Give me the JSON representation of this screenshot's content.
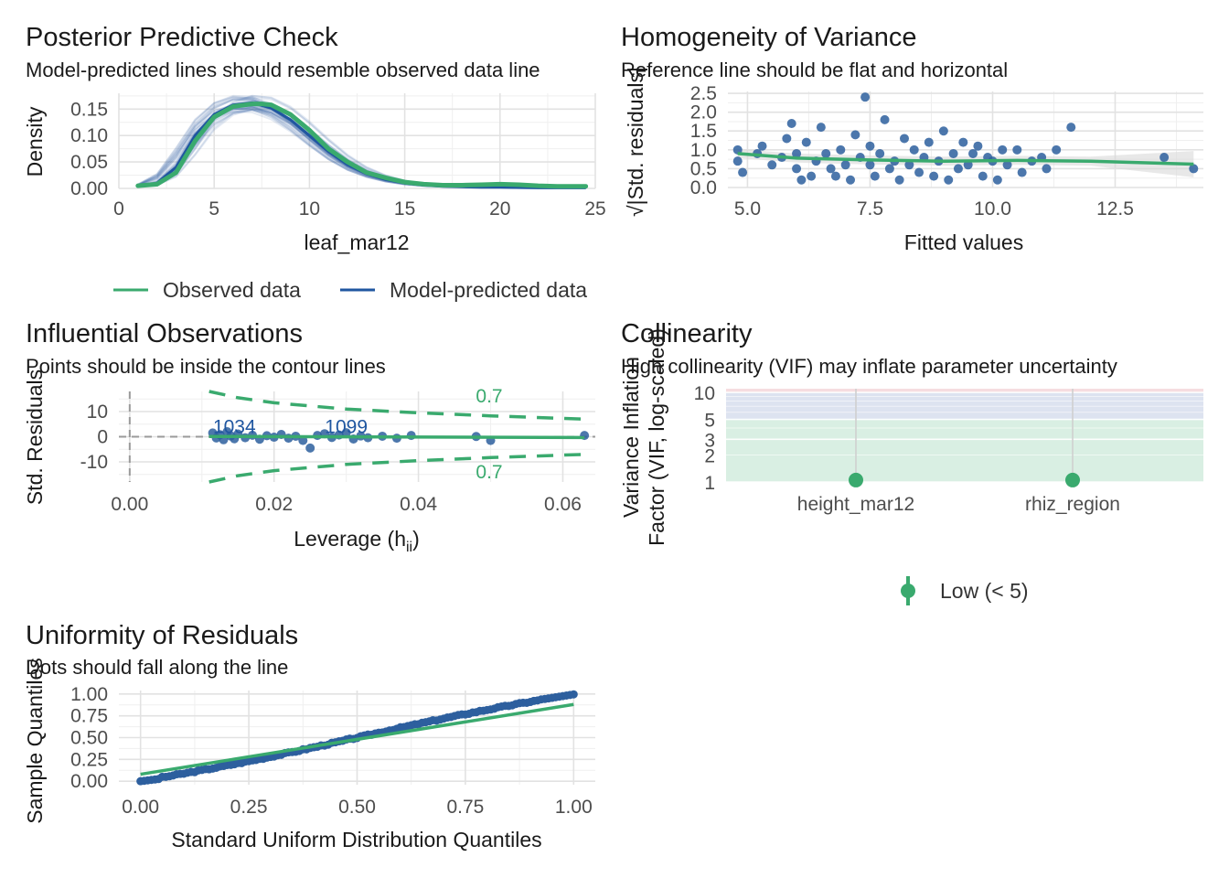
{
  "colors": {
    "observed": "#3aaa6e",
    "predicted": "#1f56a0",
    "point": "#2d5f9e",
    "low": "#3aaa6e",
    "band_low": "#d9efe3",
    "band_mod": "#dde3f0",
    "band_high": "#f6dde0"
  },
  "chart_data": [
    {
      "id": "ppc",
      "type": "line",
      "title": "Posterior Predictive Check",
      "subtitle": "Model-predicted lines should resemble observed data line",
      "xlabel": "leaf_mar12",
      "ylabel": "Density",
      "xlim": [
        0,
        25
      ],
      "ylim": [
        0,
        0.18
      ],
      "xticks": [
        0,
        5,
        10,
        15,
        20,
        25
      ],
      "yticks": [
        "0.00",
        "0.05",
        "0.10",
        "0.15"
      ],
      "legend": [
        "Observed data",
        "Model-predicted data"
      ],
      "legend_position": "bottom",
      "series": [
        {
          "name": "Observed data",
          "x": [
            1,
            2,
            3,
            4,
            5,
            6,
            7,
            7.5,
            8,
            9,
            10,
            11,
            12,
            13,
            14,
            15,
            16,
            17,
            18,
            19,
            20,
            21,
            22,
            23,
            24.5
          ],
          "y": [
            0.005,
            0.008,
            0.03,
            0.09,
            0.135,
            0.155,
            0.16,
            0.16,
            0.158,
            0.14,
            0.11,
            0.075,
            0.05,
            0.03,
            0.02,
            0.012,
            0.008,
            0.006,
            0.006,
            0.007,
            0.008,
            0.007,
            0.005,
            0.004,
            0.004
          ]
        },
        {
          "name": "Model-predicted data",
          "x": [
            1,
            2,
            3,
            4,
            5,
            6,
            7,
            8,
            9,
            10,
            11,
            12,
            13,
            14,
            15,
            16,
            17,
            18,
            19,
            20,
            22,
            24.5
          ],
          "y": [
            0.004,
            0.01,
            0.04,
            0.1,
            0.14,
            0.158,
            0.162,
            0.152,
            0.13,
            0.1,
            0.07,
            0.045,
            0.028,
            0.017,
            0.01,
            0.006,
            0.004,
            0.003,
            0.002,
            0.002,
            0.001,
            0.001
          ]
        }
      ]
    },
    {
      "id": "hov",
      "type": "scatter",
      "title": "Homogeneity of Variance",
      "subtitle": "Reference line should be flat and horizontal",
      "xlabel": "Fitted values",
      "ylabel": "√|Std. residuals|",
      "xlim": [
        4.6,
        14.3
      ],
      "ylim": [
        0,
        2.55
      ],
      "xticks": [
        "5.0",
        "7.5",
        "10.0",
        "12.5"
      ],
      "yticks": [
        "0.0",
        "0.5",
        "1.0",
        "1.5",
        "2.0",
        "2.5"
      ],
      "points": [
        [
          4.8,
          1.0
        ],
        [
          4.8,
          0.7
        ],
        [
          4.9,
          0.4
        ],
        [
          5.2,
          0.9
        ],
        [
          5.3,
          1.1
        ],
        [
          5.5,
          0.6
        ],
        [
          5.7,
          0.8
        ],
        [
          5.8,
          1.3
        ],
        [
          5.9,
          1.7
        ],
        [
          6.0,
          0.9
        ],
        [
          6.0,
          0.5
        ],
        [
          6.1,
          0.2
        ],
        [
          6.2,
          1.2
        ],
        [
          6.3,
          0.3
        ],
        [
          6.4,
          0.7
        ],
        [
          6.5,
          1.6
        ],
        [
          6.6,
          0.9
        ],
        [
          6.7,
          0.5
        ],
        [
          6.8,
          0.3
        ],
        [
          6.9,
          1.0
        ],
        [
          7.0,
          0.6
        ],
        [
          7.1,
          0.2
        ],
        [
          7.2,
          1.4
        ],
        [
          7.3,
          0.8
        ],
        [
          7.4,
          2.4
        ],
        [
          7.5,
          0.6
        ],
        [
          7.5,
          1.1
        ],
        [
          7.6,
          0.3
        ],
        [
          7.7,
          0.9
        ],
        [
          7.8,
          1.8
        ],
        [
          7.9,
          0.5
        ],
        [
          8.0,
          0.7
        ],
        [
          8.1,
          0.2
        ],
        [
          8.2,
          1.3
        ],
        [
          8.3,
          0.6
        ],
        [
          8.4,
          1.0
        ],
        [
          8.5,
          0.4
        ],
        [
          8.6,
          0.8
        ],
        [
          8.7,
          1.2
        ],
        [
          8.8,
          0.3
        ],
        [
          8.9,
          0.7
        ],
        [
          9.0,
          1.5
        ],
        [
          9.1,
          0.2
        ],
        [
          9.2,
          0.9
        ],
        [
          9.3,
          0.5
        ],
        [
          9.4,
          1.2
        ],
        [
          9.5,
          0.6
        ],
        [
          9.6,
          0.9
        ],
        [
          9.7,
          1.1
        ],
        [
          9.8,
          0.3
        ],
        [
          9.9,
          0.8
        ],
        [
          10.0,
          0.7
        ],
        [
          10.1,
          0.2
        ],
        [
          10.2,
          1.0
        ],
        [
          10.3,
          0.6
        ],
        [
          10.5,
          1.0
        ],
        [
          10.6,
          0.4
        ],
        [
          10.8,
          0.7
        ],
        [
          11.0,
          0.8
        ],
        [
          11.1,
          0.5
        ],
        [
          11.3,
          1.0
        ],
        [
          11.6,
          1.6
        ],
        [
          13.5,
          0.8
        ],
        [
          14.1,
          0.5
        ]
      ],
      "loess": {
        "x": [
          4.8,
          6.0,
          7.5,
          9.0,
          10.5,
          12.0,
          14.1
        ],
        "y": [
          0.9,
          0.78,
          0.73,
          0.7,
          0.72,
          0.7,
          0.62
        ]
      }
    },
    {
      "id": "infl",
      "type": "scatter",
      "title": "Influential Observations",
      "subtitle": "Points should be inside the contour lines",
      "xlabel": "Leverage (hii)",
      "ylabel": "Std. Residuals",
      "xlim": [
        -0.0015,
        0.0645
      ],
      "ylim": [
        -18,
        18
      ],
      "xticks": [
        "0.00",
        "0.02",
        "0.04",
        "0.06"
      ],
      "yticks": [
        "-10",
        "0",
        "10"
      ],
      "contour_label": "0.7",
      "upper_contour": {
        "x": [
          0.011,
          0.015,
          0.02,
          0.03,
          0.04,
          0.05,
          0.063
        ],
        "y": [
          18,
          15.5,
          13.5,
          11,
          9.5,
          8.3,
          7
        ]
      },
      "lower_contour": {
        "x": [
          0.011,
          0.015,
          0.02,
          0.03,
          0.04,
          0.05,
          0.063
        ],
        "y": [
          -18,
          -15.5,
          -13.5,
          -11,
          -9.5,
          -8.3,
          -7
        ]
      },
      "point_labels": [
        "1034",
        "1099"
      ],
      "points": [
        [
          0.0115,
          1.5
        ],
        [
          0.012,
          -0.5
        ],
        [
          0.0125,
          0.8
        ],
        [
          0.013,
          -1.2
        ],
        [
          0.0135,
          2.0
        ],
        [
          0.014,
          0.3
        ],
        [
          0.0145,
          -0.8
        ],
        [
          0.015,
          1.1
        ],
        [
          0.016,
          -0.4
        ],
        [
          0.017,
          0.6
        ],
        [
          0.018,
          -1.0
        ],
        [
          0.019,
          0.4
        ],
        [
          0.02,
          -0.2
        ],
        [
          0.021,
          0.9
        ],
        [
          0.022,
          -0.6
        ],
        [
          0.023,
          0.2
        ],
        [
          0.024,
          -1.5
        ],
        [
          0.025,
          -4.5
        ],
        [
          0.026,
          0.5
        ],
        [
          0.027,
          1.2
        ],
        [
          0.028,
          -0.3
        ],
        [
          0.029,
          0.7
        ],
        [
          0.03,
          1.6
        ],
        [
          0.031,
          -0.9
        ],
        [
          0.032,
          0.3
        ],
        [
          0.033,
          -0.4
        ],
        [
          0.035,
          0.2
        ],
        [
          0.037,
          -0.6
        ],
        [
          0.039,
          0.5
        ],
        [
          0.048,
          0.1
        ],
        [
          0.05,
          -1.5
        ],
        [
          0.063,
          0.5
        ]
      ]
    },
    {
      "id": "vif",
      "type": "scatter",
      "title": "Collinearity",
      "subtitle": "High collinearity (VIF) may inflate parameter uncertainty",
      "ylabel": "Variance Inflation Factor (VIF, log-scaled)",
      "categories": [
        "height_mar12",
        "rhiz_region"
      ],
      "values": [
        1.05,
        1.05
      ],
      "ylim": [
        1,
        11
      ],
      "yticks": [
        1,
        3,
        5,
        10
      ],
      "yticks_shown": [
        "1",
        "2",
        "3",
        "5",
        "10"
      ],
      "legend": [
        "Low (< 5)"
      ],
      "legend_position": "bottom"
    },
    {
      "id": "qq",
      "type": "scatter",
      "title": "Uniformity of Residuals",
      "subtitle": "Dots should fall along the line",
      "xlabel": "Standard Uniform Distribution Quantiles",
      "ylabel": "Sample Quantiles",
      "xlim": [
        -0.05,
        1.05
      ],
      "ylim": [
        -0.04,
        1.04
      ],
      "xticks": [
        "0.00",
        "0.25",
        "0.50",
        "0.75",
        "1.00"
      ],
      "yticks": [
        "0.00",
        "0.25",
        "0.50",
        "0.75",
        "1.00"
      ],
      "ref_line": {
        "x": [
          0,
          1
        ],
        "y": [
          0.08,
          0.88
        ]
      }
    }
  ]
}
